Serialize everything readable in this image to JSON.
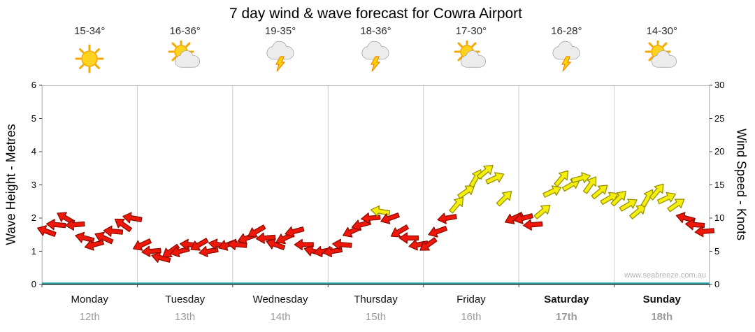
{
  "chart_data": {
    "type": "wind-arrows",
    "title": "7 day wind & wave forecast for Cowra Airport",
    "watermark": "www.seabreeze.com.au",
    "left_axis": {
      "label": "Wave Height - Metres",
      "min": 0,
      "max": 6,
      "ticks": [
        0,
        1,
        2,
        3,
        4,
        5,
        6
      ]
    },
    "right_axis": {
      "label": "Wind Speed - Knots",
      "min": 0,
      "max": 30,
      "ticks": [
        0,
        5,
        10,
        15,
        20,
        25,
        30
      ]
    },
    "grid_color": "#cccccc",
    "frame_color": "#c0c0c0",
    "axis_color": "#444444",
    "tick_color": "#444444",
    "wave_baseline_color": "#1fa0a8",
    "arrow_colors": {
      "calm": "#ee1709",
      "calm_outline": "#8f0d00",
      "moderate": "#f4ee0c",
      "moderate_outline": "#9a9100",
      "threshold_knots": 11
    },
    "days": [
      {
        "name": "Monday",
        "date": "12th",
        "temp": "15-34°",
        "icon": "sunny",
        "weekend": false,
        "wind_knots": [
          8,
          9,
          10,
          9,
          7,
          6,
          7,
          8,
          9,
          10
        ],
        "wind_dir_deg": [
          200,
          185,
          210,
          175,
          195,
          165,
          205,
          185,
          215,
          190
        ]
      },
      {
        "name": "Tuesday",
        "date": "13th",
        "temp": "16-36°",
        "icon": "partly-cloudy",
        "weekend": false,
        "wind_knots": [
          6,
          5,
          4,
          5,
          5,
          6,
          6,
          5,
          6,
          6
        ],
        "wind_dir_deg": [
          155,
          175,
          195,
          145,
          165,
          185,
          150,
          170,
          190,
          160
        ]
      },
      {
        "name": "Wednesday",
        "date": "14th",
        "temp": "19-35°",
        "icon": "storm",
        "weekend": false,
        "wind_knots": [
          6,
          7,
          8,
          7,
          6,
          7,
          8,
          6,
          5,
          5
        ],
        "wind_dir_deg": [
          185,
          160,
          150,
          175,
          200,
          155,
          165,
          180,
          195,
          170
        ]
      },
      {
        "name": "Thursday",
        "date": "15th",
        "temp": "18-36°",
        "icon": "storm",
        "weekend": false,
        "wind_knots": [
          5,
          6,
          8,
          9,
          10,
          11,
          10,
          8,
          7,
          6
        ],
        "wind_dir_deg": [
          170,
          185,
          155,
          165,
          175,
          190,
          160,
          150,
          180,
          170
        ]
      },
      {
        "name": "Friday",
        "date": "16th",
        "temp": "17-30°",
        "icon": "partly-cloudy",
        "weekend": false,
        "wind_knots": [
          6,
          8,
          10,
          12,
          14,
          16,
          17,
          16,
          13,
          10
        ],
        "wind_dir_deg": [
          145,
          160,
          170,
          310,
          325,
          300,
          320,
          335,
          315,
          155
        ]
      },
      {
        "name": "Saturday",
        "date": "17th",
        "temp": "16-28°",
        "icon": "storm",
        "weekend": true,
        "wind_knots": [
          10,
          9,
          11,
          14,
          16,
          15,
          16,
          15,
          14,
          13
        ],
        "wind_dir_deg": [
          165,
          175,
          320,
          335,
          310,
          330,
          345,
          305,
          320,
          330
        ]
      },
      {
        "name": "Sunday",
        "date": "18th",
        "temp": "14-30°",
        "icon": "partly-cloudy",
        "weekend": true,
        "wind_knots": [
          13,
          12,
          11,
          13,
          14,
          13,
          12,
          10,
          9,
          8
        ],
        "wind_dir_deg": [
          315,
          330,
          320,
          300,
          310,
          335,
          325,
          195,
          185,
          175
        ]
      }
    ]
  }
}
